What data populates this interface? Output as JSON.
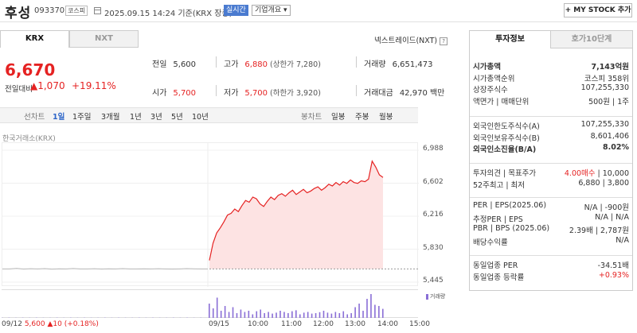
{
  "header": {
    "name": "후성",
    "code": "093370",
    "market": "코스피",
    "datetime": "2025.09.15 14:24 기준(KRX 장중)",
    "realtime_badge": "실시간",
    "overview": "기업개요 ▾",
    "mystock": "+ MY STOCK 추가"
  },
  "exchange_tabs": [
    "KRX",
    "NXT"
  ],
  "nxt_link": "넥스트레이드(NXT)",
  "quote": {
    "price": "6,670",
    "change_label": "전일대비",
    "change": "▲1,070",
    "change_pct": "+19.11%",
    "prev_label": "전일",
    "prev": "5,600",
    "high_label": "고가",
    "high": "6,880",
    "upper_limit": "(상한가 7,280)",
    "volume_label": "거래량",
    "volume": "6,651,473",
    "open_label": "시가",
    "open": "5,700",
    "low_label": "저가",
    "low": "5,700",
    "lower_limit": "(하한가 3,920)",
    "amount_label": "거래대금",
    "amount": "42,970 백만"
  },
  "periods": {
    "line_label": "선차트",
    "line": [
      "1일",
      "1주일",
      "3개월",
      "1년",
      "3년",
      "5년",
      "10년"
    ],
    "selected": "1일",
    "candle_label": "봉차트",
    "candle": [
      "일봉",
      "주봉",
      "월봉"
    ]
  },
  "chart_source": "한국거래소(KRX)",
  "chart_data": {
    "type": "line",
    "y_ticks": [
      "6,988",
      "6,602",
      "6,216",
      "5,830",
      "5,445"
    ],
    "ylim": [
      5445,
      6988
    ],
    "x_ticks": [
      "09/12",
      "09/15",
      "10:00",
      "11:00",
      "12:00",
      "13:00",
      "14:00",
      "15:00"
    ],
    "prev_close": 5600,
    "series": [
      {
        "values": [
          5600,
          5600,
          5605,
          5598,
          5602,
          5600,
          5603,
          5597,
          5601,
          5600,
          5604,
          5599,
          5600,
          5602,
          5598,
          5601,
          5600,
          5603,
          5600,
          5599,
          5601,
          5600,
          5602,
          5600,
          5598,
          5600,
          5603,
          5601,
          5600,
          5600
        ]
      },
      {
        "values": [
          5700,
          5900,
          6020,
          6080,
          6150,
          6230,
          6250,
          6300,
          6270,
          6340,
          6400,
          6380,
          6440,
          6420,
          6360,
          6330,
          6390,
          6440,
          6410,
          6460,
          6480,
          6450,
          6490,
          6520,
          6470,
          6500,
          6530,
          6490,
          6510,
          6540,
          6560,
          6520,
          6550,
          6590,
          6570,
          6610,
          6580,
          6620,
          6600,
          6640,
          6610,
          6600,
          6630,
          6620,
          6650,
          6860,
          6790,
          6700,
          6670
        ]
      }
    ],
    "volume_legend": "거래량",
    "volume": [
      2,
      3,
      2,
      3,
      2,
      3,
      2,
      2,
      3,
      2,
      3,
      2,
      3,
      2,
      2,
      3,
      2,
      3,
      2,
      2,
      3,
      2,
      3,
      2,
      2,
      3,
      2,
      3,
      2,
      3,
      60,
      40,
      85,
      30,
      50,
      25,
      45,
      20,
      35,
      25,
      30,
      15,
      28,
      35,
      20,
      25,
      18,
      22,
      30,
      25,
      20,
      28,
      32,
      15,
      22,
      25,
      18,
      20,
      24,
      30,
      22,
      18,
      25,
      20,
      28,
      15,
      20,
      45,
      60,
      30,
      80,
      100,
      55,
      50,
      38
    ]
  },
  "prev_info": {
    "date": "09/12",
    "price": "5,600",
    "change": "▲10 (+0.18%)"
  },
  "right_panel": {
    "tabs": [
      "투자정보",
      "호가10단계"
    ],
    "group1": [
      {
        "label": "시가총액",
        "value": "7,143억원",
        "bold": true
      },
      {
        "label": "시가총액순위",
        "value": "코스피 358위"
      },
      {
        "label": "상장주식수",
        "value": "107,255,330"
      },
      {
        "label": "액면가 | 매매단위",
        "value": "500원 | 1주"
      }
    ],
    "group2": [
      {
        "label": "외국인한도주식수(A)",
        "value": "107,255,330"
      },
      {
        "label": "외국인보유주식수(B)",
        "value": "8,601,406"
      },
      {
        "label": "외국인소진율(B/A)",
        "value": "8.02%",
        "bold": true
      }
    ],
    "group3": [
      {
        "label": "투자의견 | 목표주가",
        "value_red": "4.00매수",
        "value": " | 10,000"
      },
      {
        "label": "52주최고 | 최저",
        "value": "6,880 | 3,800"
      }
    ],
    "group4": [
      {
        "label": "PER | EPS(2025.06)",
        "value": "N/A | -900원"
      },
      {
        "label": "추정PER | EPS",
        "value": "N/A | N/A"
      },
      {
        "label": "PBR | BPS (2025.06)",
        "value": "2.39배 | 2,787원"
      },
      {
        "label": "배당수익률",
        "value": "N/A"
      }
    ],
    "group5": [
      {
        "label": "동일업종 PER",
        "value": "-34.51배"
      },
      {
        "label": "동일업종 등락률",
        "value": "+0.93%",
        "red": true
      }
    ]
  },
  "colors": {
    "up": "#e52222",
    "down": "#2d65c8",
    "volume": "#8a6fd6"
  }
}
